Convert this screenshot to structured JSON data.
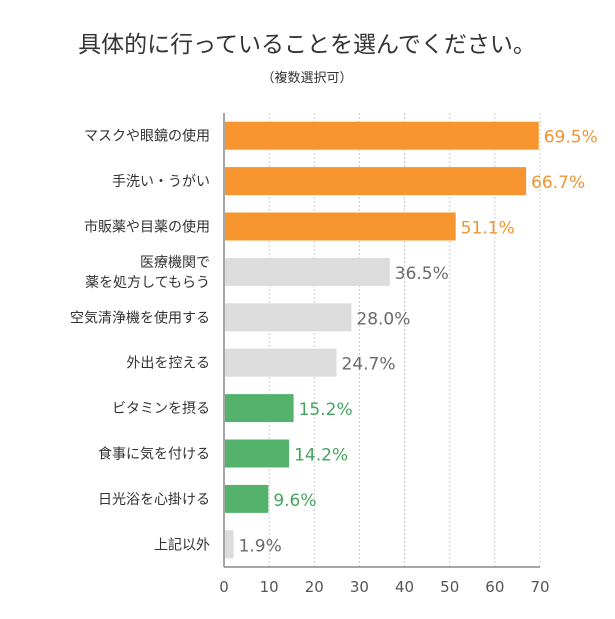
{
  "chart_data": {
    "type": "bar",
    "orientation": "horizontal",
    "title": "具体的に行っていることを選んでください。",
    "subtitle": "（複数選択可）",
    "categories": [
      "マスクや眼鏡の使用",
      "手洗い・うがい",
      "市販薬や目薬の使用",
      "医療機関で\n薬を処方してもらう",
      "空気清浄機を使用する",
      "外出を控える",
      "ビタミンを摂る",
      "食事に気を付ける",
      "日光浴を心掛ける",
      "上記以外"
    ],
    "values": [
      69.5,
      66.7,
      51.1,
      36.5,
      28.0,
      24.7,
      15.2,
      14.2,
      9.6,
      1.9
    ],
    "data_labels": [
      "69.5%",
      "66.7%",
      "51.1%",
      "36.5%",
      "28.0%",
      "24.7%",
      "15.2%",
      "14.2%",
      "9.6%",
      "1.9%"
    ],
    "groups": [
      "orange",
      "orange",
      "orange",
      "gray",
      "gray",
      "gray",
      "green",
      "green",
      "green",
      "gray"
    ],
    "colors": {
      "orange": "#F7952F",
      "gray": "#DCDCDC",
      "green": "#55B26C"
    },
    "label_colors": {
      "orange": "#EF9432",
      "gray": "#6A6A6A",
      "green": "#46A35E"
    },
    "xlim": [
      0,
      70
    ],
    "xticks": [
      "0",
      "10",
      "20",
      "30",
      "40",
      "50",
      "60",
      "70"
    ],
    "grid": true
  }
}
